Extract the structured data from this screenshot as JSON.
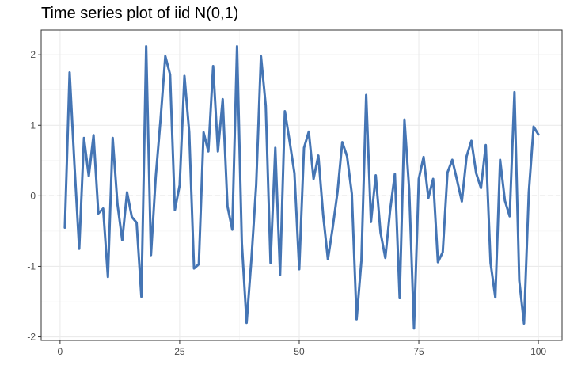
{
  "chart_data": {
    "type": "line",
    "title": "Time series plot of iid N(0,1)",
    "xlabel": "",
    "ylabel": "",
    "xlim": [
      -3.95,
      104.95
    ],
    "ylim": [
      -2.05,
      2.35
    ],
    "x_ticks": [
      0,
      25,
      50,
      75,
      100
    ],
    "y_ticks": [
      -2,
      -1,
      0,
      1,
      2
    ],
    "x_tick_labels": [
      "0",
      "25",
      "50",
      "75",
      "100"
    ],
    "y_tick_labels": [
      "-2",
      "-1",
      "0",
      "1",
      "2"
    ],
    "grid": true,
    "line_color": "#4575B4",
    "reference_line": {
      "y": 0,
      "color": "#A0A0A0",
      "style": "dashed"
    },
    "x": [
      1,
      2,
      3,
      4,
      5,
      6,
      7,
      8,
      9,
      10,
      11,
      12,
      13,
      14,
      15,
      16,
      17,
      18,
      19,
      20,
      21,
      22,
      23,
      24,
      25,
      26,
      27,
      28,
      29,
      30,
      31,
      32,
      33,
      34,
      35,
      36,
      37,
      38,
      39,
      40,
      41,
      42,
      43,
      44,
      45,
      46,
      47,
      48,
      49,
      50,
      51,
      52,
      53,
      54,
      55,
      56,
      57,
      58,
      59,
      60,
      61,
      62,
      63,
      64,
      65,
      66,
      67,
      68,
      69,
      70,
      71,
      72,
      73,
      74,
      75,
      76,
      77,
      78,
      79,
      80,
      81,
      82,
      83,
      84,
      85,
      86,
      87,
      88,
      89,
      90,
      91,
      92,
      93,
      94,
      95,
      96,
      97,
      98,
      99,
      100
    ],
    "series": [
      {
        "values": [
          -0.45,
          1.75,
          0.45,
          -0.75,
          0.82,
          0.28,
          0.86,
          -0.25,
          -0.18,
          -1.15,
          0.82,
          -0.12,
          -0.63,
          0.05,
          -0.3,
          -0.38,
          -1.43,
          2.12,
          -0.84,
          0.27,
          1.08,
          1.98,
          1.72,
          -0.2,
          0.15,
          1.7,
          0.9,
          -1.03,
          -0.97,
          0.9,
          0.63,
          1.84,
          0.63,
          1.37,
          -0.15,
          -0.48,
          2.12,
          -0.67,
          -1.8,
          -0.9,
          0.15,
          1.98,
          1.28,
          -0.95,
          0.68,
          -1.12,
          1.2,
          0.77,
          0.32,
          -1.04,
          0.68,
          0.91,
          0.24,
          0.57,
          -0.27,
          -0.9,
          -0.45,
          0.05,
          0.76,
          0.56,
          0.03,
          -1.75,
          -0.92,
          1.43,
          -0.37,
          0.29,
          -0.52,
          -0.88,
          -0.21,
          0.31,
          -1.45,
          1.08,
          0.08,
          -1.88,
          0.24,
          0.55,
          -0.03,
          0.24,
          -0.94,
          -0.8,
          0.33,
          0.51,
          0.22,
          -0.08,
          0.56,
          0.78,
          0.32,
          0.11,
          0.72,
          -0.95,
          -1.44,
          0.51,
          -0.07,
          -0.29,
          1.47,
          -1.2,
          -1.81,
          0.05,
          0.98,
          0.87
        ]
      }
    ]
  }
}
